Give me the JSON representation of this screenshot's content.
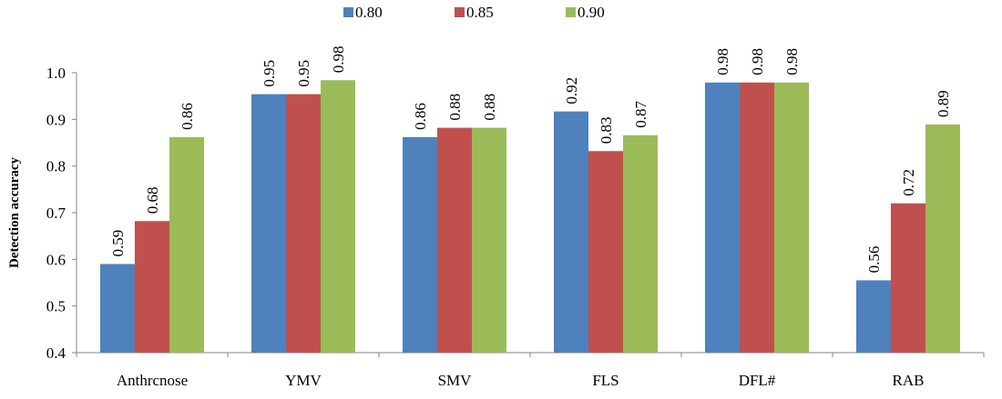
{
  "chart_data": {
    "type": "bar",
    "title": "",
    "xlabel": "",
    "ylabel": "Detection accuracy",
    "ylim": [
      0.4,
      1.0
    ],
    "yticks": [
      "0.4",
      "0.5",
      "0.6",
      "0.7",
      "0.8",
      "0.9",
      "1.0"
    ],
    "grid": false,
    "legend_position": "top-center",
    "categories": [
      "Anthrcnose",
      "YMV",
      "SMV",
      "FLS",
      "DFL#",
      "RAB"
    ],
    "series": [
      {
        "name": "0.80",
        "color": "#4F81BD",
        "values": [
          0.59,
          0.954,
          0.862,
          0.917,
          0.979,
          0.555
        ],
        "labels": [
          "0.59",
          "0.95",
          "0.86",
          "0.92",
          "0.98",
          "0.56"
        ]
      },
      {
        "name": "0.85",
        "color": "#C0504D",
        "values": [
          0.682,
          0.954,
          0.882,
          0.832,
          0.979,
          0.72
        ],
        "labels": [
          "0.68",
          "0.95",
          "0.88",
          "0.83",
          "0.98",
          "0.72"
        ]
      },
      {
        "name": "0.90",
        "color": "#9BBB59",
        "values": [
          0.862,
          0.984,
          0.882,
          0.866,
          0.979,
          0.889
        ],
        "labels": [
          "0.86",
          "0.98",
          "0.88",
          "0.87",
          "0.98",
          "0.89"
        ]
      }
    ]
  }
}
